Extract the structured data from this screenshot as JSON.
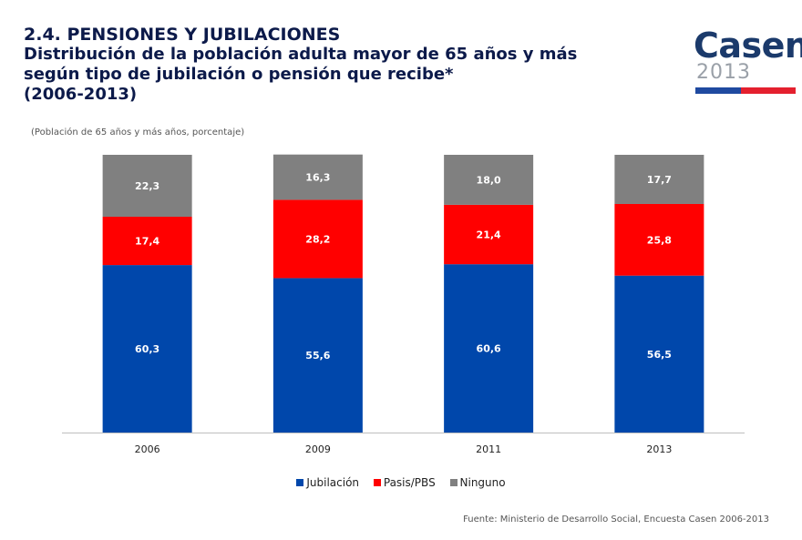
{
  "header": {
    "section_title": "2.4. PENSIONES Y JUBILACIONES",
    "chart_title_lines": [
      "Distribución de la población adulta mayor de 65 años y más",
      "según tipo de jubilación o pensión que recibe*",
      "(2006-2013)"
    ],
    "subtitle": "(Población de 65 años y más años, porcentaje)"
  },
  "logo": {
    "word": "Casen",
    "year": "2013"
  },
  "chart_data": {
    "type": "bar",
    "stacked": true,
    "categories": [
      "2006",
      "2009",
      "2011",
      "2013"
    ],
    "series": [
      {
        "name": "Jubilación",
        "color": "#0047AB",
        "values": [
          60.3,
          55.6,
          60.6,
          56.5
        ],
        "labels": [
          "60,3",
          "55,6",
          "60,6",
          "56,5"
        ]
      },
      {
        "name": "Pasis/PBS",
        "color": "#FF0000",
        "values": [
          17.4,
          28.2,
          21.4,
          25.8
        ],
        "labels": [
          "17,4",
          "28,2",
          "21,4",
          "25,8"
        ]
      },
      {
        "name": "Ninguno",
        "color": "#808080",
        "values": [
          22.3,
          16.3,
          18.0,
          17.7
        ],
        "labels": [
          "22,3",
          "16,3",
          "18,0",
          "17,7"
        ]
      }
    ],
    "ylim": [
      0,
      100
    ],
    "grid": false,
    "legend_position": "bottom"
  },
  "source": "Fuente: Ministerio de Desarrollo Social, Encuesta Casen 2006-2013"
}
